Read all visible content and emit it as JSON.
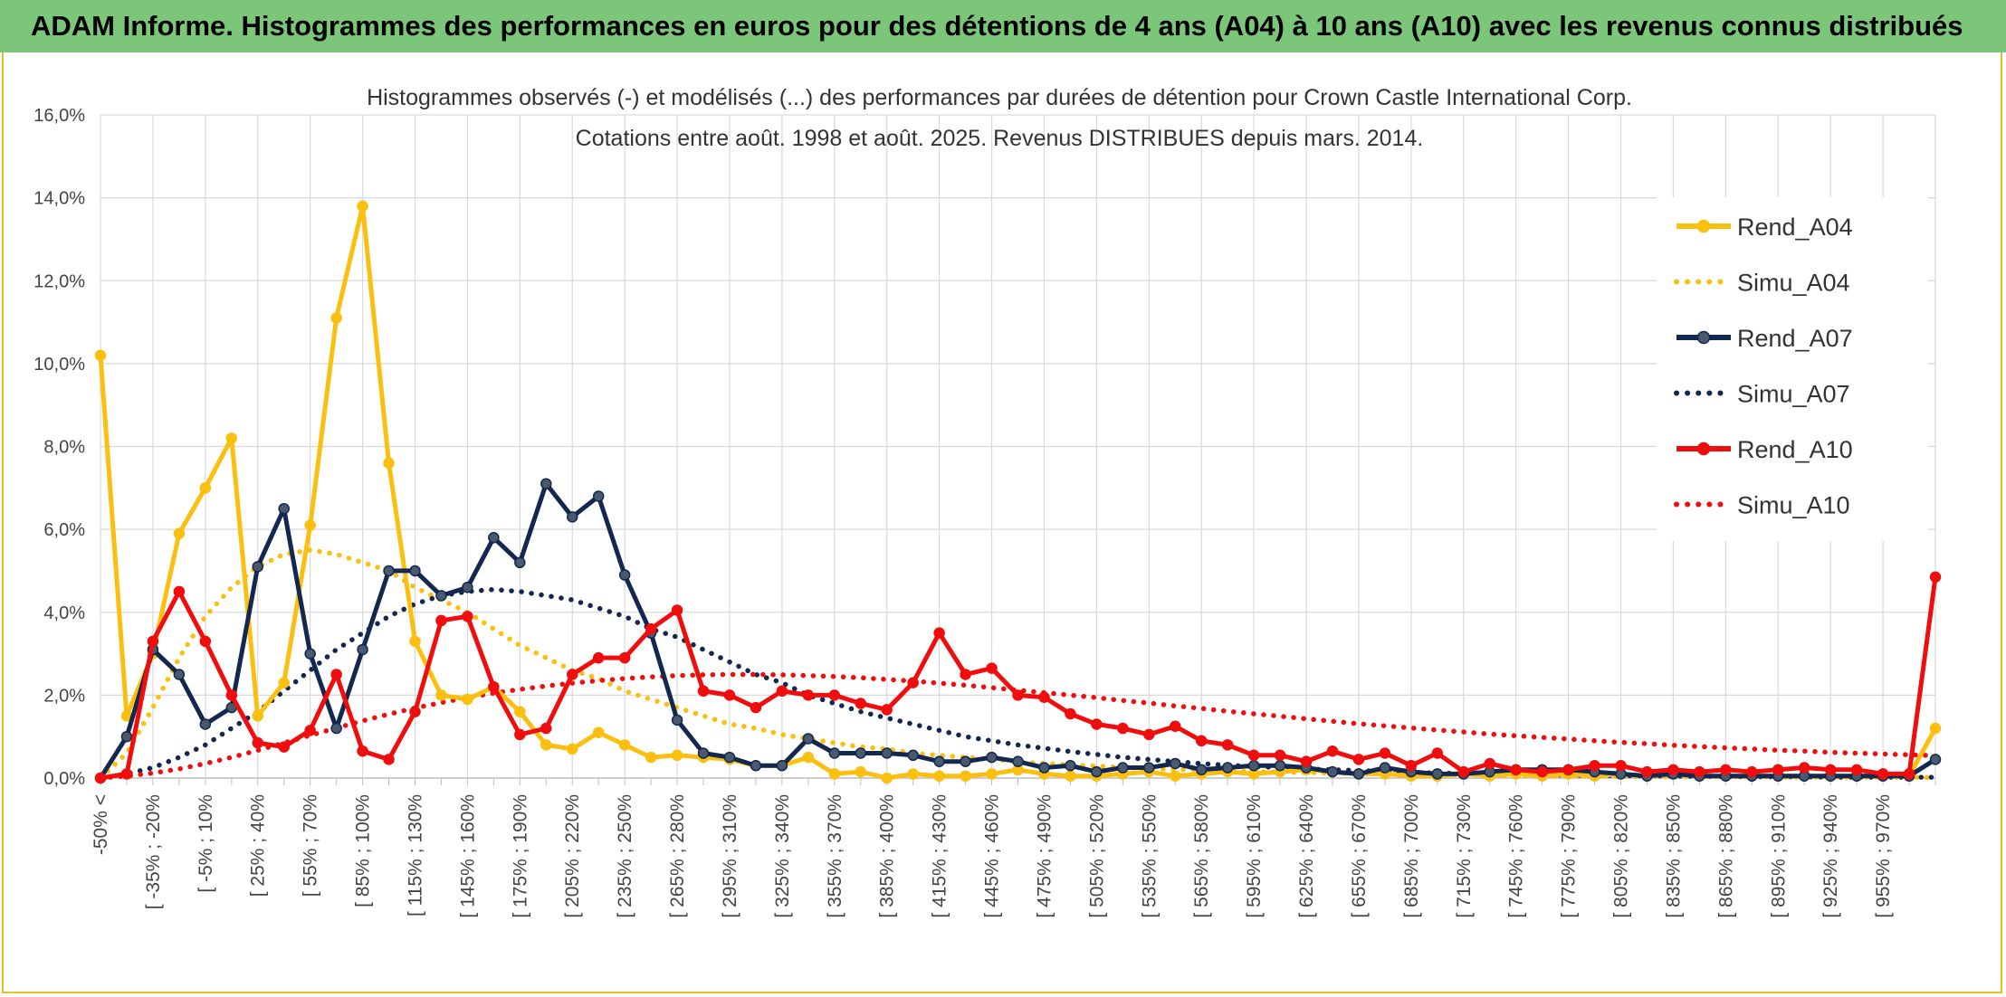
{
  "banner": {
    "title": "ADAM Informe. Histogrammes des performances en euros pour des détentions de 4 ans (A04) à 10 ans (A10) avec les revenus connus distribués"
  },
  "colors": {
    "A04": "#fbbf10",
    "A07": "#13274f",
    "A07_marker": "#4a5a6e",
    "A10": "#f00d0d",
    "grid": "#d9d9d9",
    "banner_bg": "#7cc67a",
    "frame": "#e8c020"
  },
  "chart_data": {
    "type": "line",
    "title": "Histogrammes observés (-) et modélisés (...) des performances par durées de détention pour Crown Castle International Corp.",
    "subtitle": "Cotations entre août. 1998 et août. 2025. Revenus DISTRIBUES depuis mars. 2014.",
    "xlabel": "",
    "ylabel": "",
    "ylim": [
      0,
      16
    ],
    "y_ticks": [
      "0,0%",
      "2,0%",
      "4,0%",
      "6,0%",
      "8,0%",
      "10,0%",
      "12,0%",
      "14,0%",
      "16,0%"
    ],
    "grid": true,
    "legend_position": "right",
    "x_tick_labels": [
      "-50% <",
      "[ -35% ; -20%",
      "[ -5% ; 10%",
      "[ 25% ; 40%",
      "[ 55% ; 70%",
      "[ 85% ; 100%",
      "[ 115% ; 130%",
      "[ 145% ; 160%",
      "[ 175% ; 190%",
      "[ 205% ; 220%",
      "[ 235% ; 250%",
      "[ 265% ; 280%",
      "[ 295% ; 310%",
      "[ 325% ; 340%",
      "[ 355% ; 370%",
      "[ 385% ; 400%",
      "[ 415% ; 430%",
      "[ 445% ; 460%",
      "[ 475% ; 490%",
      "[ 505% ; 520%",
      "[ 535% ; 550%",
      "[ 565% ; 580%",
      "[ 595% ; 610%",
      "[ 625% ; 640%",
      "[ 655% ; 670%",
      "[ 685% ; 700%",
      "[ 715% ; 730%",
      "[ 745% ; 760%",
      "[ 775% ; 790%",
      "[ 805% ; 820%",
      "[ 835% ; 850%",
      "[ 865% ; 880%",
      "[ 895% ; 910%",
      "[ 925% ; 940%",
      "[ 955% ; 970%"
    ],
    "series": [
      {
        "name": "Rend_A04",
        "style": "solid",
        "values": [
          10.2,
          1.5,
          3.0,
          5.9,
          7.0,
          8.2,
          1.5,
          2.3,
          6.1,
          11.1,
          13.8,
          7.6,
          3.3,
          2.0,
          1.9,
          2.2,
          1.6,
          0.8,
          0.7,
          1.1,
          0.8,
          0.5,
          0.55,
          0.5,
          0.45,
          0.3,
          0.3,
          0.5,
          0.1,
          0.15,
          0.0,
          0.1,
          0.05,
          0.05,
          0.1,
          0.2,
          0.1,
          0.05,
          0.05,
          0.1,
          0.15,
          0.05,
          0.1,
          0.15,
          0.1,
          0.15,
          0.2,
          0.15,
          0.1,
          0.1,
          0.05,
          0.05,
          0.1,
          0.05,
          0.1,
          0.05,
          0.1,
          0.05,
          0.1,
          0.05,
          0.1,
          0.05,
          0.05,
          0.05,
          0.05,
          0.05,
          0.05,
          0.05,
          0.05,
          0.05,
          1.2
        ]
      },
      {
        "name": "Simu_A04",
        "style": "dotted",
        "values": [
          0.0,
          0.6,
          1.7,
          2.9,
          3.9,
          4.6,
          5.1,
          5.4,
          5.5,
          5.4,
          5.2,
          5.0,
          4.6,
          4.3,
          4.0,
          3.6,
          3.2,
          2.9,
          2.6,
          2.4,
          2.1,
          1.9,
          1.7,
          1.5,
          1.3,
          1.2,
          1.05,
          0.95,
          0.85,
          0.75,
          0.7,
          0.6,
          0.55,
          0.5,
          0.45,
          0.4,
          0.35,
          0.32,
          0.29,
          0.26,
          0.23,
          0.21,
          0.19,
          0.17,
          0.16,
          0.14,
          0.13,
          0.12,
          0.11,
          0.1,
          0.09,
          0.08,
          0.07,
          0.07,
          0.06,
          0.05,
          0.05,
          0.05,
          0.04,
          0.04,
          0.03,
          0.03,
          0.03,
          0.03,
          0.02,
          0.02,
          0.02,
          0.02,
          0.02,
          0.02,
          0.01
        ]
      },
      {
        "name": "Rend_A07",
        "style": "solid",
        "values": [
          0.0,
          1.0,
          3.1,
          2.5,
          1.3,
          1.7,
          5.1,
          6.5,
          3.0,
          1.2,
          3.1,
          5.0,
          5.0,
          4.4,
          4.6,
          5.8,
          5.2,
          7.1,
          6.3,
          6.8,
          4.9,
          3.5,
          1.4,
          0.6,
          0.5,
          0.3,
          0.3,
          0.95,
          0.6,
          0.6,
          0.6,
          0.55,
          0.4,
          0.4,
          0.5,
          0.4,
          0.25,
          0.3,
          0.15,
          0.25,
          0.25,
          0.35,
          0.2,
          0.25,
          0.3,
          0.3,
          0.25,
          0.15,
          0.1,
          0.25,
          0.15,
          0.1,
          0.1,
          0.15,
          0.2,
          0.2,
          0.2,
          0.15,
          0.1,
          0.05,
          0.1,
          0.05,
          0.05,
          0.05,
          0.05,
          0.05,
          0.05,
          0.05,
          0.05,
          0.05,
          0.45
        ]
      },
      {
        "name": "Simu_A07",
        "style": "dotted",
        "values": [
          0.0,
          0.1,
          0.25,
          0.5,
          0.8,
          1.2,
          1.6,
          2.1,
          2.6,
          3.1,
          3.5,
          3.9,
          4.2,
          4.4,
          4.5,
          4.55,
          4.5,
          4.4,
          4.3,
          4.1,
          3.9,
          3.6,
          3.4,
          3.1,
          2.8,
          2.5,
          2.3,
          2.0,
          1.8,
          1.6,
          1.45,
          1.3,
          1.15,
          1.0,
          0.9,
          0.8,
          0.72,
          0.64,
          0.57,
          0.5,
          0.45,
          0.4,
          0.35,
          0.31,
          0.28,
          0.25,
          0.22,
          0.2,
          0.18,
          0.16,
          0.14,
          0.12,
          0.11,
          0.1,
          0.09,
          0.08,
          0.07,
          0.06,
          0.06,
          0.05,
          0.05,
          0.04,
          0.04,
          0.03,
          0.03,
          0.03,
          0.02,
          0.02,
          0.02,
          0.02,
          0.02
        ]
      },
      {
        "name": "Rend_A10",
        "style": "solid",
        "values": [
          0.0,
          0.1,
          3.3,
          4.5,
          3.3,
          2.0,
          0.85,
          0.75,
          1.15,
          2.5,
          0.65,
          0.45,
          1.6,
          3.8,
          3.9,
          2.2,
          1.05,
          1.2,
          2.5,
          2.9,
          2.9,
          3.6,
          4.05,
          2.1,
          2.0,
          1.7,
          2.1,
          2.0,
          2.0,
          1.8,
          1.65,
          2.3,
          3.5,
          2.5,
          2.65,
          2.0,
          1.95,
          1.55,
          1.3,
          1.2,
          1.05,
          1.25,
          0.9,
          0.8,
          0.55,
          0.55,
          0.4,
          0.65,
          0.45,
          0.6,
          0.3,
          0.6,
          0.15,
          0.35,
          0.2,
          0.15,
          0.2,
          0.3,
          0.3,
          0.15,
          0.2,
          0.15,
          0.2,
          0.15,
          0.2,
          0.25,
          0.2,
          0.2,
          0.1,
          0.1,
          4.85
        ]
      },
      {
        "name": "Simu_A10",
        "style": "dotted",
        "values": [
          0.0,
          0.05,
          0.12,
          0.22,
          0.35,
          0.5,
          0.67,
          0.85,
          1.03,
          1.21,
          1.38,
          1.54,
          1.69,
          1.82,
          1.94,
          2.05,
          2.14,
          2.22,
          2.29,
          2.35,
          2.4,
          2.44,
          2.47,
          2.49,
          2.5,
          2.5,
          2.49,
          2.47,
          2.45,
          2.42,
          2.38,
          2.34,
          2.29,
          2.24,
          2.18,
          2.12,
          2.06,
          2.0,
          1.94,
          1.87,
          1.81,
          1.74,
          1.68,
          1.61,
          1.55,
          1.49,
          1.43,
          1.37,
          1.31,
          1.26,
          1.21,
          1.16,
          1.11,
          1.06,
          1.02,
          0.98,
          0.94,
          0.9,
          0.86,
          0.83,
          0.79,
          0.76,
          0.73,
          0.7,
          0.67,
          0.65,
          0.62,
          0.6,
          0.58,
          0.56,
          0.54
        ]
      }
    ]
  }
}
